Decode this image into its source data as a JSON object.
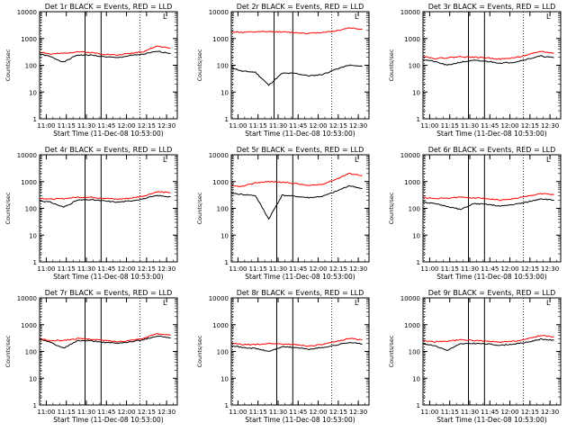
{
  "panel_common": {
    "ylabel": "Counts/sec",
    "xlabel": "Start Time (11-Dec-08 10:53:00)",
    "xticks": [
      "11:00",
      "11:15",
      "11:30",
      "11:45",
      "12:00",
      "12:15",
      "12:30"
    ],
    "yticks": [
      "1",
      "10",
      "100",
      "1000",
      "10000"
    ],
    "corner_mark": "L"
  },
  "colors": {
    "events": "#000000",
    "lld": "#ff0000"
  },
  "chart_data": [
    {
      "type": "line",
      "title": "Det 1r BLACK = Events, RED = LLD",
      "x_minutes": [
        0,
        10,
        20,
        30,
        40,
        50,
        60,
        70,
        80,
        90,
        100
      ],
      "series": [
        {
          "name": "Events",
          "color": "#000000",
          "values": [
            280,
            210,
            130,
            240,
            240,
            210,
            190,
            230,
            260,
            330,
            280
          ]
        },
        {
          "name": "LLD",
          "color": "#ff0000",
          "values": [
            340,
            260,
            280,
            320,
            300,
            260,
            240,
            280,
            330,
            520,
            430
          ]
        }
      ],
      "ylog": true,
      "ylim": [
        1,
        10000
      ],
      "dotted_lines_min": [
        3,
        77
      ],
      "solid_lines_min": [
        36,
        48
      ]
    },
    {
      "type": "line",
      "title": "Det 2r BLACK = Events, RED = LLD",
      "x_minutes": [
        0,
        10,
        20,
        30,
        40,
        50,
        60,
        70,
        80,
        90,
        100
      ],
      "series": [
        {
          "name": "Events",
          "color": "#000000",
          "values": [
            90,
            60,
            55,
            18,
            50,
            50,
            40,
            45,
            70,
            100,
            90
          ]
        },
        {
          "name": "LLD",
          "color": "#ff0000",
          "values": [
            1800,
            1700,
            1750,
            1800,
            1750,
            1650,
            1550,
            1700,
            1900,
            2500,
            2200
          ]
        }
      ],
      "ylog": true,
      "ylim": [
        1,
        10000
      ],
      "dotted_lines_min": [
        3,
        77
      ],
      "solid_lines_min": [
        34,
        48
      ]
    },
    {
      "type": "line",
      "title": "Det 3r BLACK = Events, RED = LLD",
      "x_minutes": [
        0,
        10,
        20,
        30,
        40,
        50,
        60,
        70,
        80,
        90,
        100
      ],
      "series": [
        {
          "name": "Events",
          "color": "#000000",
          "values": [
            170,
            140,
            100,
            130,
            150,
            140,
            120,
            130,
            170,
            220,
            190
          ]
        },
        {
          "name": "LLD",
          "color": "#ff0000",
          "values": [
            230,
            180,
            190,
            210,
            200,
            190,
            170,
            190,
            240,
            330,
            280
          ]
        }
      ],
      "ylog": true,
      "ylim": [
        1,
        10000
      ],
      "dotted_lines_min": [
        3,
        77
      ],
      "solid_lines_min": [
        36,
        48
      ]
    },
    {
      "type": "line",
      "title": "Det 4r BLACK = Events, RED = LLD",
      "x_minutes": [
        0,
        10,
        20,
        30,
        40,
        50,
        60,
        70,
        80,
        90,
        100
      ],
      "series": [
        {
          "name": "Events",
          "color": "#000000",
          "values": [
            200,
            170,
            110,
            200,
            210,
            190,
            170,
            190,
            230,
            300,
            270
          ]
        },
        {
          "name": "LLD",
          "color": "#ff0000",
          "values": [
            250,
            220,
            230,
            260,
            260,
            240,
            220,
            240,
            290,
            420,
            380
          ]
        }
      ],
      "ylog": true,
      "ylim": [
        1,
        10000
      ],
      "dotted_lines_min": [
        3,
        77
      ],
      "solid_lines_min": [
        36,
        48
      ]
    },
    {
      "type": "line",
      "title": "Det 5r BLACK = Events, RED = LLD",
      "x_minutes": [
        0,
        10,
        20,
        30,
        40,
        50,
        60,
        70,
        80,
        90,
        100
      ],
      "series": [
        {
          "name": "Events",
          "color": "#000000",
          "values": [
            380,
            330,
            300,
            40,
            310,
            280,
            250,
            280,
            420,
            700,
            550
          ]
        },
        {
          "name": "LLD",
          "color": "#ff0000",
          "values": [
            700,
            650,
            900,
            1000,
            950,
            850,
            700,
            800,
            1200,
            2000,
            1700
          ]
        }
      ],
      "ylog": true,
      "ylim": [
        1,
        10000
      ],
      "dotted_lines_min": [
        3,
        77
      ],
      "solid_lines_min": [
        36,
        48
      ]
    },
    {
      "type": "line",
      "title": "Det 6r BLACK = Events, RED = LLD",
      "x_minutes": [
        0,
        10,
        20,
        30,
        40,
        50,
        60,
        70,
        80,
        90,
        100
      ],
      "series": [
        {
          "name": "Events",
          "color": "#000000",
          "values": [
            180,
            150,
            120,
            90,
            150,
            140,
            120,
            140,
            170,
            230,
            200
          ]
        },
        {
          "name": "LLD",
          "color": "#ff0000",
          "values": [
            260,
            230,
            240,
            260,
            250,
            230,
            200,
            230,
            280,
            360,
            320
          ]
        }
      ],
      "ylog": true,
      "ylim": [
        1,
        10000
      ],
      "dotted_lines_min": [
        3,
        77
      ],
      "solid_lines_min": [
        36,
        48
      ]
    },
    {
      "type": "line",
      "title": "Det 7r BLACK = Events, RED = LLD",
      "x_minutes": [
        0,
        10,
        20,
        30,
        40,
        50,
        60,
        70,
        80,
        90,
        100
      ],
      "series": [
        {
          "name": "Events",
          "color": "#000000",
          "values": [
            300,
            220,
            130,
            250,
            250,
            220,
            200,
            230,
            280,
            380,
            320
          ]
        },
        {
          "name": "LLD",
          "color": "#ff0000",
          "values": [
            320,
            250,
            260,
            300,
            290,
            260,
            230,
            260,
            310,
            470,
            400
          ]
        }
      ],
      "ylog": true,
      "ylim": [
        1,
        10000
      ],
      "dotted_lines_min": [
        3,
        77
      ],
      "solid_lines_min": [
        36,
        48
      ]
    },
    {
      "type": "line",
      "title": "Det 8r BLACK = Events, RED = LLD",
      "x_minutes": [
        0,
        10,
        20,
        30,
        40,
        50,
        60,
        70,
        80,
        90,
        100
      ],
      "series": [
        {
          "name": "Events",
          "color": "#000000",
          "values": [
            180,
            140,
            130,
            100,
            150,
            140,
            120,
            140,
            170,
            220,
            190
          ]
        },
        {
          "name": "LLD",
          "color": "#ff0000",
          "values": [
            210,
            180,
            180,
            200,
            190,
            180,
            160,
            180,
            230,
            310,
            270
          ]
        }
      ],
      "ylog": true,
      "ylim": [
        1,
        10000
      ],
      "dotted_lines_min": [
        3,
        77
      ],
      "solid_lines_min": [
        36,
        48
      ]
    },
    {
      "type": "line",
      "title": "Det 9r BLACK = Events, RED = LLD",
      "x_minutes": [
        0,
        10,
        20,
        30,
        40,
        50,
        60,
        70,
        80,
        90,
        100
      ],
      "series": [
        {
          "name": "Events",
          "color": "#000000",
          "values": [
            200,
            170,
            110,
            190,
            200,
            190,
            170,
            190,
            220,
            290,
            260
          ]
        },
        {
          "name": "LLD",
          "color": "#ff0000",
          "values": [
            260,
            230,
            240,
            270,
            260,
            240,
            220,
            240,
            290,
            400,
            350
          ]
        }
      ],
      "ylog": true,
      "ylim": [
        1,
        10000
      ],
      "dotted_lines_min": [
        3,
        77
      ],
      "solid_lines_min": [
        36,
        48
      ]
    }
  ]
}
